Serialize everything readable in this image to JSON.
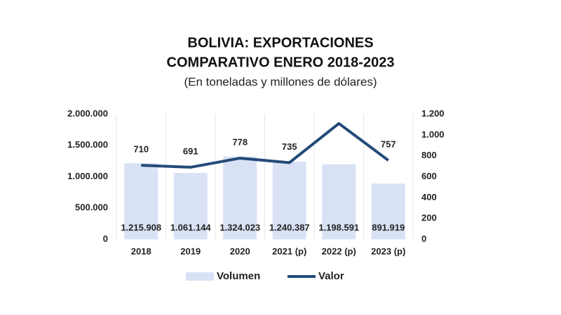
{
  "chart_data": {
    "type": "bar",
    "title": [
      "BOLIVIA: EXPORTACIONES",
      "COMPARATIVO ENERO 2018-2023"
    ],
    "subtitle": "(En toneladas y millones de dólares)",
    "categories": [
      "2018",
      "2019",
      "2020",
      "2021 (p)",
      "2022 (p)",
      "2023 (p)"
    ],
    "series": [
      {
        "name": "Volumen",
        "type": "bar",
        "color": "#d9e2f5",
        "values": [
          1215908,
          1061144,
          1324023,
          1240387,
          1198591,
          891919
        ],
        "value_labels": [
          "1.215.908",
          "1.061.144",
          "1.324.023",
          "1.240.387",
          "1.198.591",
          "891.919"
        ]
      },
      {
        "name": "Valor",
        "type": "line",
        "axis": "y2",
        "color": "#234a78",
        "values": [
          710,
          691,
          778,
          735,
          1110,
          757
        ],
        "value_labels": [
          "710",
          "691",
          "778",
          "735",
          null,
          "757"
        ]
      }
    ],
    "ylim": [
      0,
      2000000
    ],
    "yticks": [
      0,
      {
        "value": 500000,
        "label": "500.000"
      },
      {
        "value": 1000000,
        "label": "1.000.000"
      },
      {
        "value": 1500000,
        "label": "1.500.000"
      },
      {
        "value": 2000000,
        "label": "2.000.000"
      }
    ],
    "y2lim": [
      0,
      1200
    ],
    "y2ticks": [
      0,
      200,
      400,
      600,
      800,
      {
        "value": 1000,
        "label": "1.000"
      },
      {
        "value": 1200,
        "label": "1.200"
      }
    ],
    "grid": true,
    "legend": "bottom"
  }
}
